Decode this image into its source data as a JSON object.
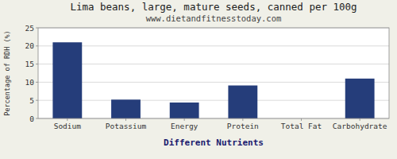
{
  "chart_data": {
    "type": "bar",
    "title": "Lima beans, large, mature seeds, canned per 100g",
    "subtitle": "www.dietandfitnesstoday.com",
    "xlabel": "Different Nutrients",
    "ylabel": "Percentage of RDH (%)",
    "categories": [
      "Sodium",
      "Potassium",
      "Energy",
      "Protein",
      "Total Fat",
      "Carbohydrate"
    ],
    "values": [
      21.0,
      5.2,
      4.4,
      9.1,
      0.0,
      11.0
    ],
    "color": "#253d7a",
    "ylim": [
      0,
      25
    ],
    "yticks": [
      0,
      5,
      10,
      15,
      20,
      25
    ],
    "grid": true
  }
}
